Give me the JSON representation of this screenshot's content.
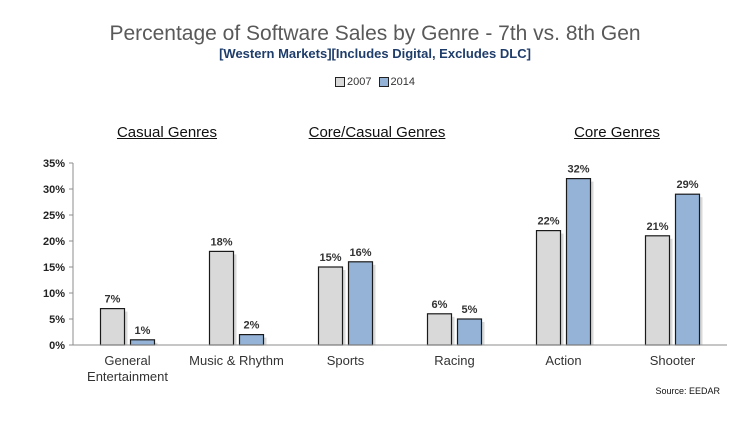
{
  "chart_data": {
    "type": "bar",
    "title": "Percentage of Software Sales by Genre - 7th vs. 8th Gen",
    "subtitle": "[Western Markets][Includes Digital, Excludes DLC]",
    "categories": [
      "General Entertainment",
      "Music & Rhythm",
      "Sports",
      "Racing",
      "Action",
      "Shooter"
    ],
    "category_lines": [
      [
        "General",
        "Entertainment"
      ],
      [
        "Music & Rhythm"
      ],
      [
        "Sports"
      ],
      [
        "Racing"
      ],
      [
        "Action"
      ],
      [
        "Shooter"
      ]
    ],
    "series": [
      {
        "name": "2007",
        "values": [
          7,
          18,
          15,
          6,
          22,
          21
        ],
        "labels": [
          "7%",
          "18%",
          "15%",
          "6%",
          "22%",
          "21%"
        ],
        "color": "#d9d9d9"
      },
      {
        "name": "2014",
        "values": [
          1,
          2,
          16,
          5,
          32,
          29
        ],
        "labels": [
          "1%",
          "2%",
          "16%",
          "5%",
          "32%",
          "29%"
        ],
        "color": "#95b3d7"
      }
    ],
    "ylim": [
      0,
      35
    ],
    "yticks": [
      0,
      5,
      10,
      15,
      20,
      25,
      30,
      35
    ],
    "ytick_labels": [
      "0%",
      "5%",
      "10%",
      "15%",
      "20%",
      "25%",
      "30%",
      "35%"
    ],
    "legend_position": "top-center",
    "group_labels": [
      "Casual Genres",
      "Core/Casual Genres",
      "Core Genres"
    ],
    "grid": false
  },
  "source": "Source: EEDAR"
}
